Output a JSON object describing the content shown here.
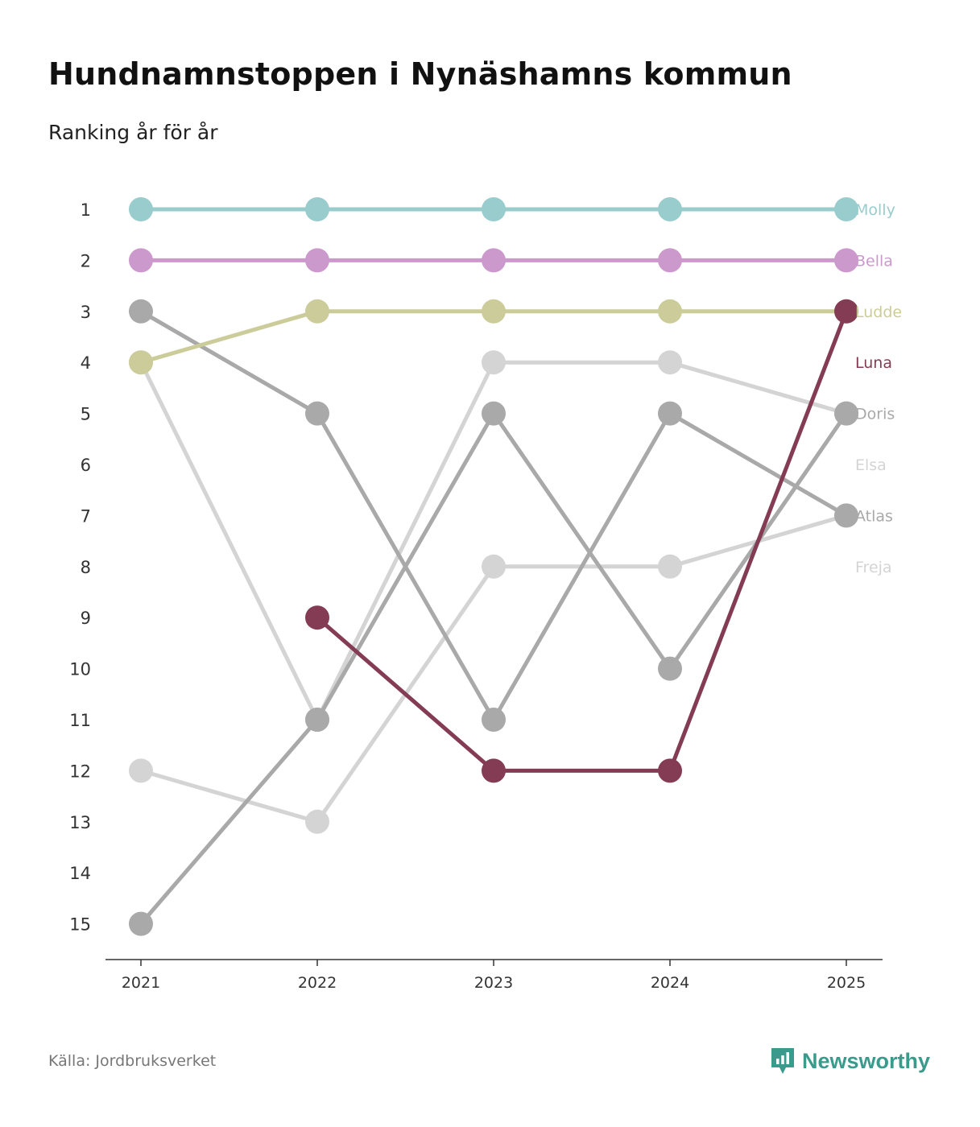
{
  "header": {
    "title": "Hundnamnstoppen i Nynäshamns kommun",
    "subtitle": "Ranking år för år"
  },
  "footer": {
    "source": "Källa: Jordbruksverket",
    "brand": "Newsworthy",
    "brand_color": "#3a9b8d",
    "logo_icon": "bar-chart-speech-bubble-icon"
  },
  "chart_data": {
    "type": "line",
    "title": "Hundnamnstoppen i Nynäshamns kommun",
    "subtitle": "Ranking år för år",
    "xlabel": "",
    "ylabel": "",
    "x": [
      "2021",
      "2022",
      "2023",
      "2024",
      "2025"
    ],
    "y_ticks": [
      "1",
      "2",
      "3",
      "4",
      "5",
      "6",
      "7",
      "8",
      "9",
      "10",
      "11",
      "12",
      "13",
      "14",
      "15"
    ],
    "ylim": [
      1,
      15
    ],
    "y_inverted": true,
    "grid": false,
    "legend": "direct labels at right end",
    "series": [
      {
        "name": "Freja",
        "color": "#d4d4d4",
        "values": [
          12,
          13,
          8,
          8,
          7
        ]
      },
      {
        "name": "Elsa",
        "color": "#d4d4d4",
        "values": [
          4,
          11,
          4,
          4,
          5
        ]
      },
      {
        "name": "Atlas",
        "color": "#a9a9a9",
        "values": [
          3,
          5,
          11,
          5,
          7
        ]
      },
      {
        "name": "Doris",
        "color": "#a9a9a9",
        "values": [
          15,
          11,
          5,
          10,
          5
        ]
      },
      {
        "name": "Ludde",
        "color": "#cccc9b",
        "values": [
          4,
          3,
          3,
          3,
          3
        ]
      },
      {
        "name": "Bella",
        "color": "#cc99cc",
        "values": [
          2,
          2,
          2,
          2,
          2
        ]
      },
      {
        "name": "Molly",
        "color": "#99cccc",
        "values": [
          1,
          1,
          1,
          1,
          1
        ]
      },
      {
        "name": "Luna",
        "color": "#843c54",
        "values": [
          null,
          9,
          12,
          12,
          3
        ]
      }
    ],
    "end_labels": [
      {
        "name": "Molly",
        "color": "#99cccc",
        "rank": 1
      },
      {
        "name": "Bella",
        "color": "#cc99cc",
        "rank": 2
      },
      {
        "name": "Ludde",
        "color": "#cccc9b",
        "rank": 3
      },
      {
        "name": "Luna",
        "color": "#843c54",
        "rank": 4
      },
      {
        "name": "Doris",
        "color": "#a9a9a9",
        "rank": 5
      },
      {
        "name": "Elsa",
        "color": "#d4d4d4",
        "rank": 6
      },
      {
        "name": "Atlas",
        "color": "#a9a9a9",
        "rank": 7
      },
      {
        "name": "Freja",
        "color": "#d4d4d4",
        "rank": 8
      }
    ]
  }
}
